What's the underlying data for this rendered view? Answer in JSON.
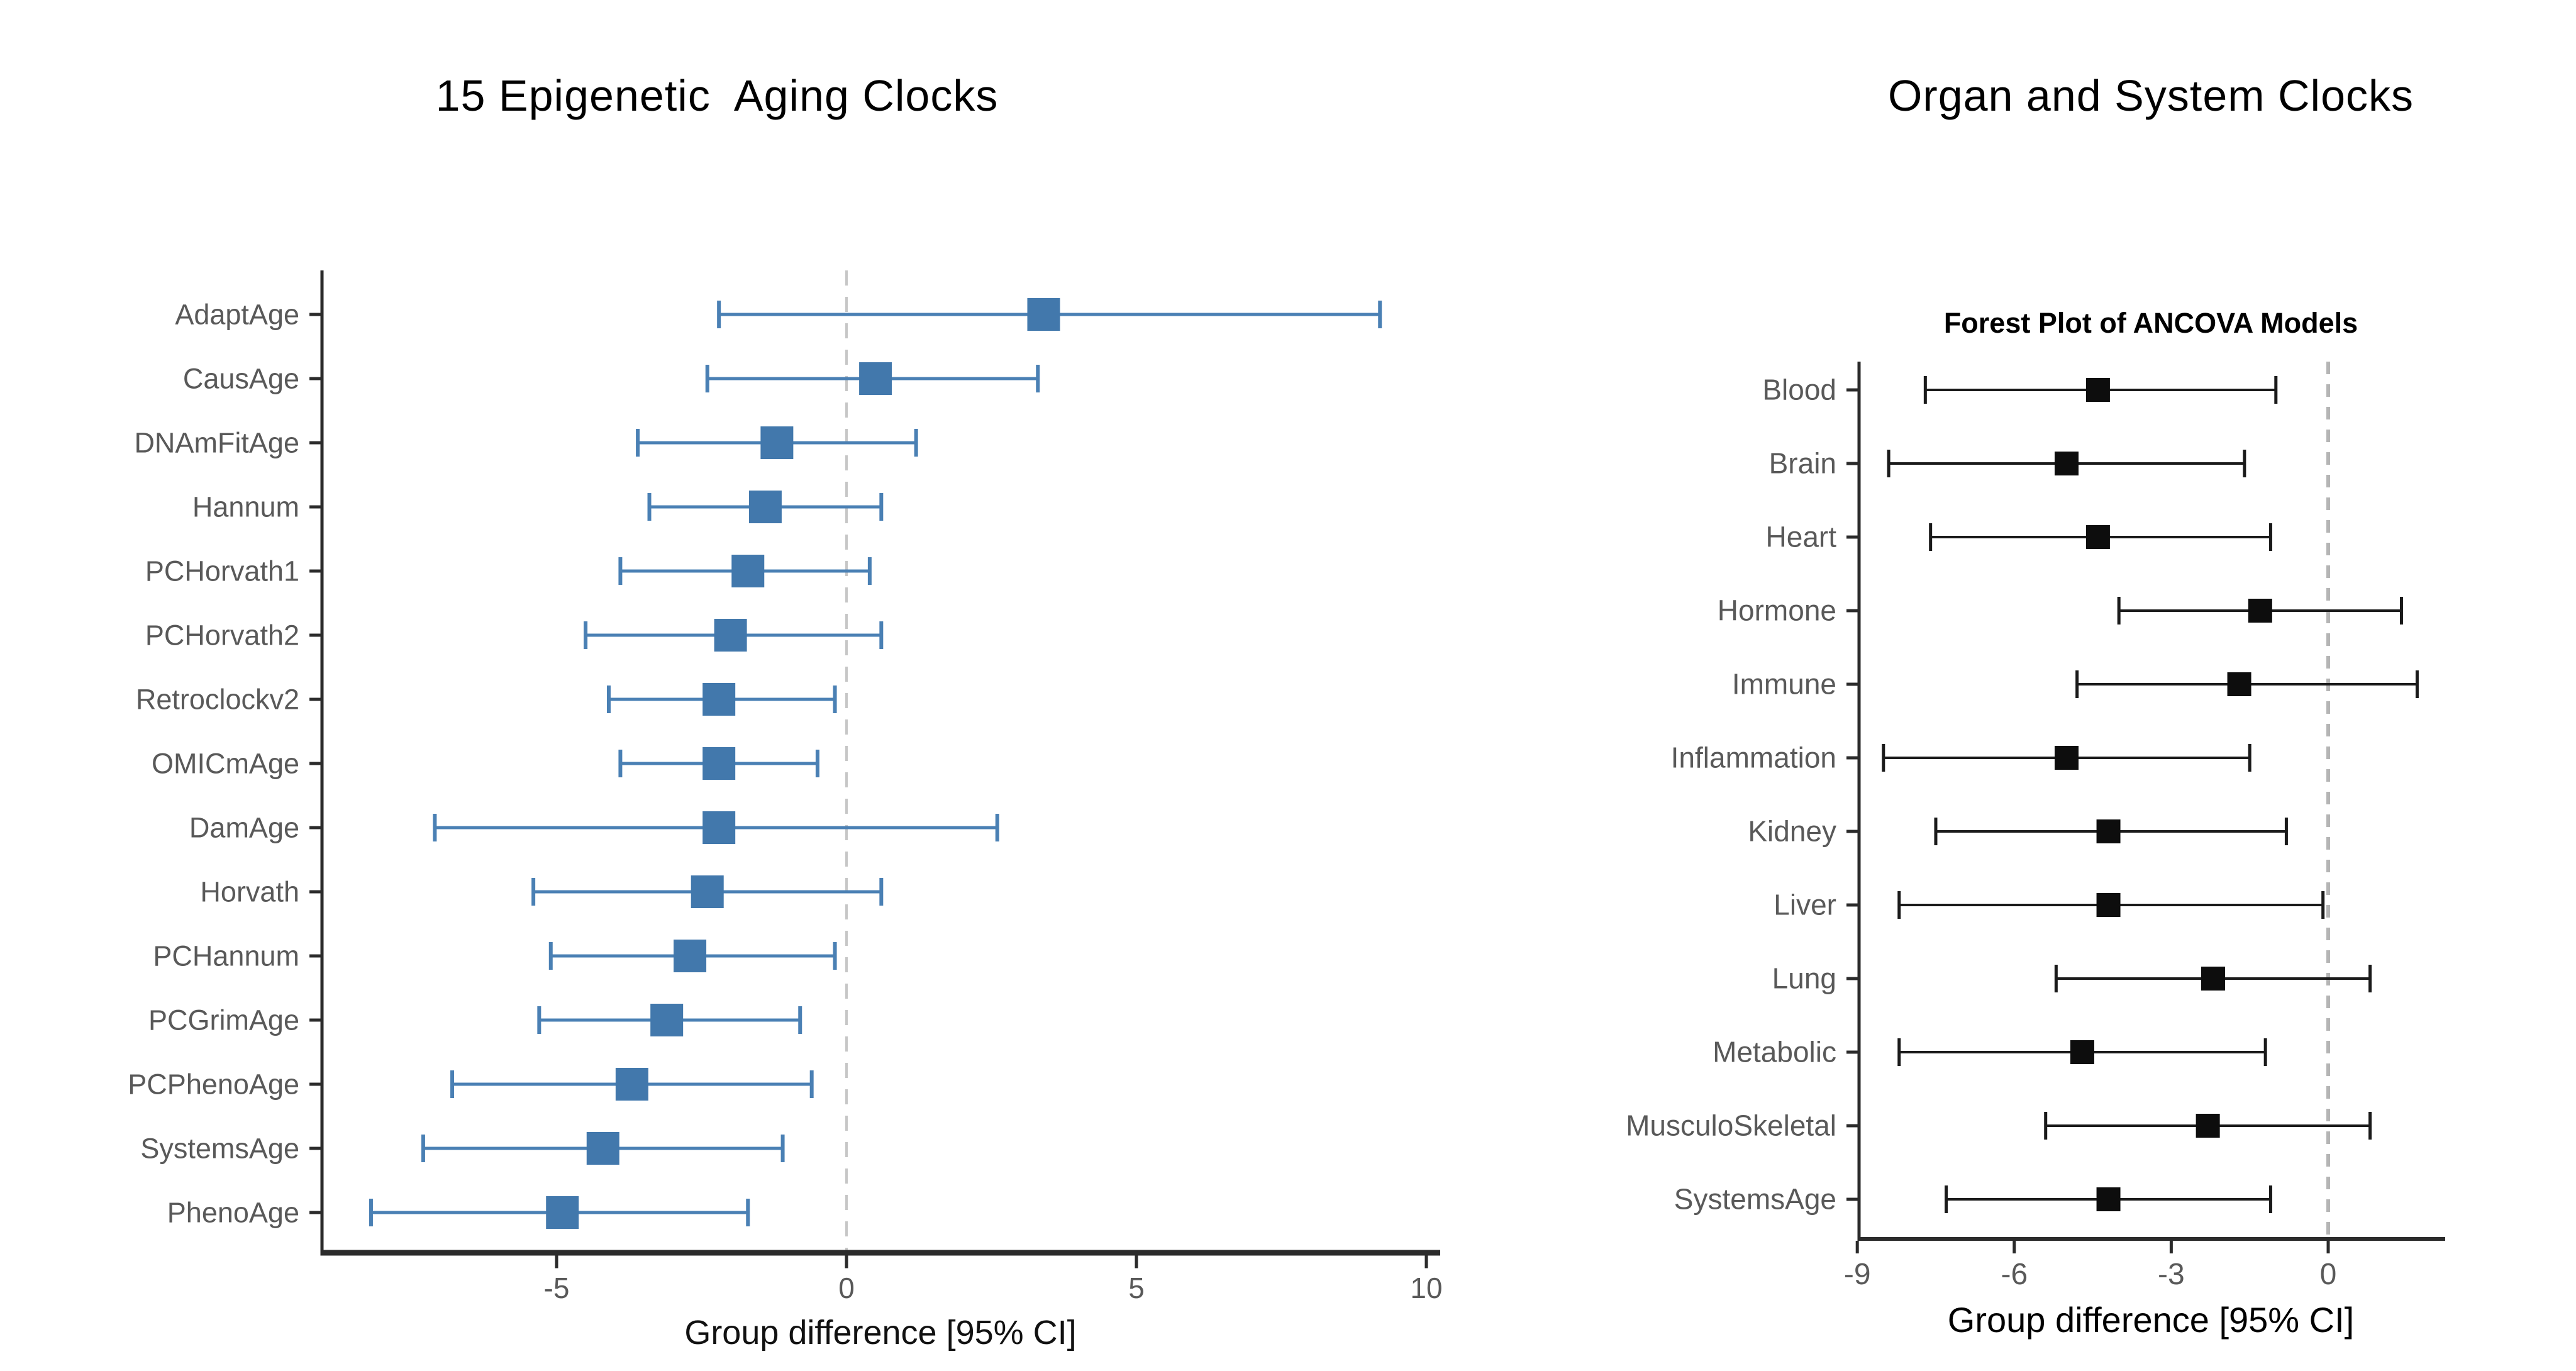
{
  "page": {
    "background": "#ffffff"
  },
  "chart_data": [
    {
      "type": "forest",
      "title": "15 Epigenetic  Aging Clocks",
      "xlabel": "Group difference [95% CI]",
      "x_ticks": [
        -5,
        0,
        5,
        10
      ],
      "xlim": [
        -9.0,
        10.2
      ],
      "zero_line": 0,
      "legend": "none",
      "grid": "off",
      "marker_color": "#4278ac",
      "line_color": "#4a80b4",
      "zero_line_color": "#c6c6c6",
      "label_color": "#595959",
      "tick_label_color": "#595959",
      "rows": [
        {
          "label": "AdaptAge",
          "est": 3.4,
          "lo": -2.2,
          "hi": 9.2
        },
        {
          "label": "CausAge",
          "est": 0.5,
          "lo": -2.4,
          "hi": 3.3
        },
        {
          "label": "DNAmFitAge",
          "est": -1.2,
          "lo": -3.6,
          "hi": 1.2
        },
        {
          "label": "Hannum",
          "est": -1.4,
          "lo": -3.4,
          "hi": 0.6
        },
        {
          "label": "PCHorvath1",
          "est": -1.7,
          "lo": -3.9,
          "hi": 0.4
        },
        {
          "label": "PCHorvath2",
          "est": -2.0,
          "lo": -4.5,
          "hi": 0.6
        },
        {
          "label": "Retroclockv2",
          "est": -2.2,
          "lo": -4.1,
          "hi": -0.2
        },
        {
          "label": "OMICmAge",
          "est": -2.2,
          "lo": -3.9,
          "hi": -0.5
        },
        {
          "label": "DamAge",
          "est": -2.2,
          "lo": -7.1,
          "hi": 2.6
        },
        {
          "label": "Horvath",
          "est": -2.4,
          "lo": -5.4,
          "hi": 0.6
        },
        {
          "label": "PCHannum",
          "est": -2.7,
          "lo": -5.1,
          "hi": -0.2
        },
        {
          "label": "PCGrimAge",
          "est": -3.1,
          "lo": -5.3,
          "hi": -0.8
        },
        {
          "label": "PCPhenoAge",
          "est": -3.7,
          "lo": -6.8,
          "hi": -0.6
        },
        {
          "label": "SystemsAge",
          "est": -4.2,
          "lo": -7.3,
          "hi": -1.1
        },
        {
          "label": "PhenoAge",
          "est": -4.9,
          "lo": -8.2,
          "hi": -1.7
        }
      ]
    },
    {
      "type": "forest",
      "title": "Organ and System Clocks",
      "subtitle": "Forest Plot of ANCOVA Models",
      "xlabel": "Group difference [95% CI]",
      "x_ticks": [
        -9,
        -6,
        -3,
        0
      ],
      "xlim": [
        -9.0,
        2.2
      ],
      "zero_line": 0,
      "legend": "none",
      "grid": "off",
      "marker_color": "#0d0d0d",
      "line_color": "#1a1a1a",
      "zero_line_color": "#b5b5b5",
      "label_color": "#595959",
      "tick_label_color": "#595959",
      "rows": [
        {
          "label": "Blood",
          "est": -4.4,
          "lo": -7.7,
          "hi": -1.0
        },
        {
          "label": "Brain",
          "est": -5.0,
          "lo": -8.4,
          "hi": -1.6
        },
        {
          "label": "Heart",
          "est": -4.4,
          "lo": -7.6,
          "hi": -1.1
        },
        {
          "label": "Hormone",
          "est": -1.3,
          "lo": -4.0,
          "hi": 1.4
        },
        {
          "label": "Immune",
          "est": -1.7,
          "lo": -4.8,
          "hi": 1.7
        },
        {
          "label": "Inflammation",
          "est": -5.0,
          "lo": -8.5,
          "hi": -1.5
        },
        {
          "label": "Kidney",
          "est": -4.2,
          "lo": -7.5,
          "hi": -0.8
        },
        {
          "label": "Liver",
          "est": -4.2,
          "lo": -8.2,
          "hi": -0.1
        },
        {
          "label": "Lung",
          "est": -2.2,
          "lo": -5.2,
          "hi": 0.8
        },
        {
          "label": "Metabolic",
          "est": -4.7,
          "lo": -8.2,
          "hi": -1.2
        },
        {
          "label": "MusculoSkeletal",
          "est": -2.3,
          "lo": -5.4,
          "hi": 0.8
        },
        {
          "label": "SystemsAge",
          "est": -4.2,
          "lo": -7.3,
          "hi": -1.1
        }
      ]
    }
  ]
}
